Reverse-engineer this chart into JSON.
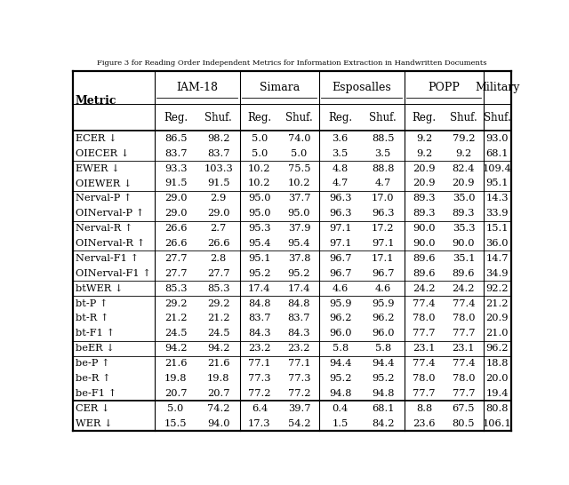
{
  "title": "Figure 3 for Reading Order Independent Metrics for Information Extraction in Handwritten Documents",
  "col_groups": [
    {
      "label": "IAM-18",
      "subcols": [
        "Reg.",
        "Shuf."
      ],
      "span": 2
    },
    {
      "label": "Simara",
      "subcols": [
        "Reg.",
        "Shuf."
      ],
      "span": 2
    },
    {
      "label": "Esposalles",
      "subcols": [
        "Reg.",
        "Shuf."
      ],
      "span": 2
    },
    {
      "label": "POPP",
      "subcols": [
        "Reg.",
        "Shuf."
      ],
      "span": 2
    },
    {
      "label": "Military",
      "subcols": [
        "Shuf."
      ],
      "span": 1
    }
  ],
  "rows": [
    {
      "metric": "ECER ↓",
      "group": "ECER",
      "vals": [
        "86.5",
        "98.2",
        "5.0",
        "74.0",
        "3.6",
        "88.5",
        "9.2",
        "79.2",
        "93.0"
      ]
    },
    {
      "metric": "OIECER ↓",
      "group": "ECER",
      "vals": [
        "83.7",
        "83.7",
        "5.0",
        "5.0",
        "3.5",
        "3.5",
        "9.2",
        "9.2",
        "68.1"
      ]
    },
    {
      "metric": "EWER ↓",
      "group": "EWER",
      "vals": [
        "93.3",
        "103.3",
        "10.2",
        "75.5",
        "4.8",
        "88.8",
        "20.9",
        "82.4",
        "109.4"
      ]
    },
    {
      "metric": "OIEWER ↓",
      "group": "EWER",
      "vals": [
        "91.5",
        "91.5",
        "10.2",
        "10.2",
        "4.7",
        "4.7",
        "20.9",
        "20.9",
        "95.1"
      ]
    },
    {
      "metric": "Nerval-P ↑",
      "group": "NervalP",
      "vals": [
        "29.0",
        "2.9",
        "95.0",
        "37.7",
        "96.3",
        "17.0",
        "89.3",
        "35.0",
        "14.3"
      ]
    },
    {
      "metric": "OINerval-P ↑",
      "group": "NervalP",
      "vals": [
        "29.0",
        "29.0",
        "95.0",
        "95.0",
        "96.3",
        "96.3",
        "89.3",
        "89.3",
        "33.9"
      ]
    },
    {
      "metric": "Nerval-R ↑",
      "group": "NervalR",
      "vals": [
        "26.6",
        "2.7",
        "95.3",
        "37.9",
        "97.1",
        "17.2",
        "90.0",
        "35.3",
        "15.1"
      ]
    },
    {
      "metric": "OINerval-R ↑",
      "group": "NervalR",
      "vals": [
        "26.6",
        "26.6",
        "95.4",
        "95.4",
        "97.1",
        "97.1",
        "90.0",
        "90.0",
        "36.0"
      ]
    },
    {
      "metric": "Nerval-F1 ↑",
      "group": "NervalF1",
      "vals": [
        "27.7",
        "2.8",
        "95.1",
        "37.8",
        "96.7",
        "17.1",
        "89.6",
        "35.1",
        "14.7"
      ]
    },
    {
      "metric": "OINerval-F1 ↑",
      "group": "NervalF1",
      "vals": [
        "27.7",
        "27.7",
        "95.2",
        "95.2",
        "96.7",
        "96.7",
        "89.6",
        "89.6",
        "34.9"
      ]
    },
    {
      "metric": "btWER ↓",
      "group": "btWER",
      "vals": [
        "85.3",
        "85.3",
        "17.4",
        "17.4",
        "4.6",
        "4.6",
        "24.2",
        "24.2",
        "92.2"
      ]
    },
    {
      "metric": "bt-P ↑",
      "group": "bt",
      "vals": [
        "29.2",
        "29.2",
        "84.8",
        "84.8",
        "95.9",
        "95.9",
        "77.4",
        "77.4",
        "21.2"
      ]
    },
    {
      "metric": "bt-R ↑",
      "group": "bt",
      "vals": [
        "21.2",
        "21.2",
        "83.7",
        "83.7",
        "96.2",
        "96.2",
        "78.0",
        "78.0",
        "20.9"
      ]
    },
    {
      "metric": "bt-F1 ↑",
      "group": "bt",
      "vals": [
        "24.5",
        "24.5",
        "84.3",
        "84.3",
        "96.0",
        "96.0",
        "77.7",
        "77.7",
        "21.0"
      ]
    },
    {
      "metric": "beER ↓",
      "group": "beER",
      "vals": [
        "94.2",
        "94.2",
        "23.2",
        "23.2",
        "5.8",
        "5.8",
        "23.1",
        "23.1",
        "96.2"
      ]
    },
    {
      "metric": "be-P ↑",
      "group": "be",
      "vals": [
        "21.6",
        "21.6",
        "77.1",
        "77.1",
        "94.4",
        "94.4",
        "77.4",
        "77.4",
        "18.8"
      ]
    },
    {
      "metric": "be-R ↑",
      "group": "be",
      "vals": [
        "19.8",
        "19.8",
        "77.3",
        "77.3",
        "95.2",
        "95.2",
        "78.0",
        "78.0",
        "20.0"
      ]
    },
    {
      "metric": "be-F1 ↑",
      "group": "be",
      "vals": [
        "20.7",
        "20.7",
        "77.2",
        "77.2",
        "94.8",
        "94.8",
        "77.7",
        "77.7",
        "19.4"
      ]
    },
    {
      "metric": "CER ↓",
      "group": "CERW",
      "vals": [
        "5.0",
        "74.2",
        "6.4",
        "39.7",
        "0.4",
        "68.1",
        "8.8",
        "67.5",
        "80.8"
      ]
    },
    {
      "metric": "WER ↓",
      "group": "CERW",
      "vals": [
        "15.5",
        "94.0",
        "17.3",
        "54.2",
        "1.5",
        "84.2",
        "23.6",
        "80.5",
        "106.1"
      ]
    }
  ],
  "bg_color": "#ffffff",
  "text_color": "#000000"
}
